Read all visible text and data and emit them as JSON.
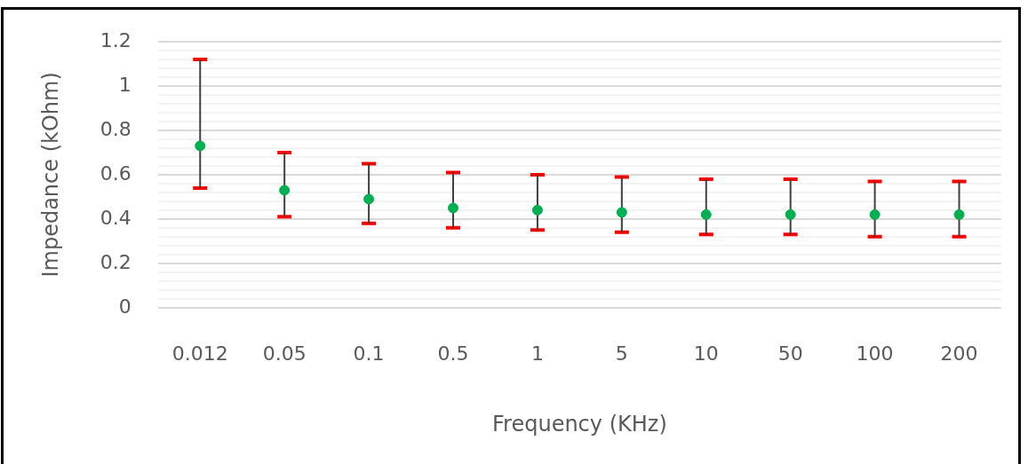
{
  "chart_data": {
    "type": "scatter",
    "xlabel": "Frequency (KHz)",
    "ylabel": "Impedance (kOhm)",
    "categories": [
      "0.012",
      "0.05",
      "0.1",
      "0.5",
      "1",
      "5",
      "10",
      "50",
      "100",
      "200"
    ],
    "series": [
      {
        "color": "#00b050",
        "values": [
          0.73,
          0.53,
          0.49,
          0.45,
          0.44,
          0.43,
          0.42,
          0.42,
          0.42,
          0.42
        ],
        "errors": [
          [
            0.54,
            1.12
          ],
          [
            0.41,
            0.7
          ],
          [
            0.38,
            0.65
          ],
          [
            0.36,
            0.61
          ],
          [
            0.35,
            0.6
          ],
          [
            0.34,
            0.59
          ],
          [
            0.33,
            0.58
          ],
          [
            0.33,
            0.58
          ],
          [
            0.32,
            0.57
          ],
          [
            0.32,
            0.57
          ]
        ]
      }
    ],
    "ylim": [
      0,
      1.2
    ],
    "yticks": [
      0,
      {
        "value": 0.04,
        "label": null
      },
      {
        "value": 0.08,
        "label": null
      },
      {
        "value": 0.12,
        "label": null
      },
      {
        "value": 0.16,
        "label": null
      },
      0.2,
      {
        "value": 0.24,
        "label": null
      },
      {
        "value": 0.28,
        "label": null
      },
      {
        "value": 0.32,
        "label": null
      },
      {
        "value": 0.36,
        "label": null
      },
      0.4,
      {
        "value": 0.44,
        "label": null
      },
      {
        "value": 0.48,
        "label": null
      },
      {
        "value": 0.52,
        "label": null
      },
      {
        "value": 0.56,
        "label": null
      },
      0.6,
      {
        "value": 0.64,
        "label": null
      },
      {
        "value": 0.68,
        "label": null
      },
      {
        "value": 0.72,
        "label": null
      },
      {
        "value": 0.76,
        "label": null
      },
      0.8,
      {
        "value": 0.84,
        "label": null
      },
      {
        "value": 0.88,
        "label": null
      },
      {
        "value": 0.92,
        "label": null
      },
      {
        "value": 0.96,
        "label": null
      },
      1,
      {
        "value": 1.04,
        "label": null
      },
      {
        "value": 1.08,
        "label": null
      },
      {
        "value": 1.12,
        "label": null
      },
      {
        "value": 1.16,
        "label": null
      },
      1.2
    ],
    "grid": "y",
    "legend": false,
    "marker": "circle"
  }
}
